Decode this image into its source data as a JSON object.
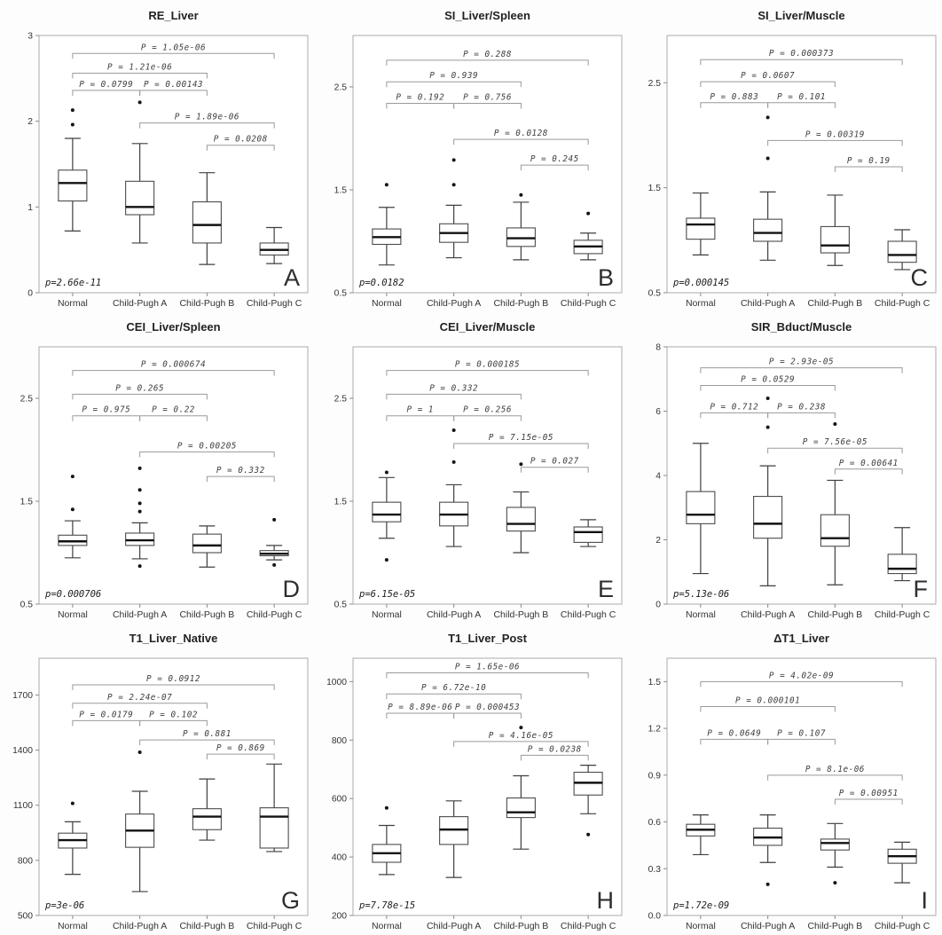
{
  "figure": {
    "categories": [
      "Normal",
      "Child-Pugh A",
      "Child-Pugh B",
      "Child-Pugh C"
    ],
    "palette": {
      "background": "#fdfdfd",
      "plot_border": "#ababab",
      "box_fill": "#ffffff",
      "box_stroke": "#4c4c4c",
      "median": "#111111",
      "whisker": "#3f3f3f",
      "bracket": "#9a9a9a",
      "bracket_text": "#3d3d3d",
      "axis_text": "#333333",
      "title_text": "#222222",
      "letter_text": "#2e2e2e",
      "outlier": "#151515"
    }
  },
  "chart_data": [
    {
      "type": "boxplot",
      "panel_label": "A",
      "title": "RE_Liver",
      "overall_p": "p=2.66e-11",
      "ylim": [
        0,
        3
      ],
      "ytick_values": [
        0,
        1,
        2,
        3
      ],
      "ytick_labels": [
        "0",
        "1",
        "2",
        "3"
      ],
      "boxes": [
        {
          "group": "Normal",
          "whisker_low": 0.72,
          "q1": 1.07,
          "median": 1.28,
          "q3": 1.43,
          "whisker_high": 1.8,
          "outliers": [
            1.96,
            2.13
          ]
        },
        {
          "group": "Child-Pugh A",
          "whisker_low": 0.58,
          "q1": 0.91,
          "median": 1.0,
          "q3": 1.3,
          "whisker_high": 1.74,
          "outliers": [
            2.22
          ]
        },
        {
          "group": "Child-Pugh B",
          "whisker_low": 0.33,
          "q1": 0.58,
          "median": 0.79,
          "q3": 1.06,
          "whisker_high": 1.4,
          "outliers": []
        },
        {
          "group": "Child-Pugh C",
          "whisker_low": 0.34,
          "q1": 0.44,
          "median": 0.5,
          "q3": 0.58,
          "whisker_high": 0.76,
          "outliers": []
        }
      ],
      "comparisons": [
        {
          "g1": 0,
          "g2": 3,
          "y": 2.79,
          "label": "P = 1.05e-06"
        },
        {
          "g1": 0,
          "g2": 2,
          "y": 2.56,
          "label": "P = 1.21e-06"
        },
        {
          "g1": 0,
          "g2": 1,
          "y": 2.36,
          "label": "P = 0.0799"
        },
        {
          "g1": 1,
          "g2": 2,
          "y": 2.36,
          "label": "P = 0.00143"
        },
        {
          "g1": 1,
          "g2": 3,
          "y": 1.98,
          "label": "P = 1.89e-06"
        },
        {
          "g1": 2,
          "g2": 3,
          "y": 1.72,
          "label": "P = 0.0208"
        }
      ]
    },
    {
      "type": "boxplot",
      "panel_label": "B",
      "title": "SI_Liver/Spleen",
      "overall_p": "p=0.0182",
      "ylim": [
        0.5,
        3.0
      ],
      "ytick_values": [
        0.5,
        1.5,
        2.5
      ],
      "ytick_labels": [
        "0.5",
        "1.5",
        "2.5"
      ],
      "boxes": [
        {
          "group": "Normal",
          "whisker_low": 0.77,
          "q1": 0.97,
          "median": 1.04,
          "q3": 1.12,
          "whisker_high": 1.33,
          "outliers": [
            1.55
          ]
        },
        {
          "group": "Child-Pugh A",
          "whisker_low": 0.84,
          "q1": 0.99,
          "median": 1.08,
          "q3": 1.17,
          "whisker_high": 1.35,
          "outliers": [
            1.55,
            1.79
          ]
        },
        {
          "group": "Child-Pugh B",
          "whisker_low": 0.82,
          "q1": 0.95,
          "median": 1.03,
          "q3": 1.13,
          "whisker_high": 1.38,
          "outliers": [
            1.45
          ]
        },
        {
          "group": "Child-Pugh C",
          "whisker_low": 0.82,
          "q1": 0.88,
          "median": 0.95,
          "q3": 1.01,
          "whisker_high": 1.08,
          "outliers": [
            1.27
          ]
        }
      ],
      "comparisons": [
        {
          "g1": 0,
          "g2": 3,
          "y": 2.76,
          "label": "P = 0.288"
        },
        {
          "g1": 0,
          "g2": 2,
          "y": 2.55,
          "label": "P = 0.939"
        },
        {
          "g1": 0,
          "g2": 1,
          "y": 2.34,
          "label": "P = 0.192"
        },
        {
          "g1": 1,
          "g2": 2,
          "y": 2.34,
          "label": "P = 0.756"
        },
        {
          "g1": 1,
          "g2": 3,
          "y": 1.99,
          "label": "P = 0.0128"
        },
        {
          "g1": 2,
          "g2": 3,
          "y": 1.74,
          "label": "P = 0.245"
        }
      ]
    },
    {
      "type": "boxplot",
      "panel_label": "C",
      "title": "SI_Liver/Muscle",
      "overall_p": "p=0.000145",
      "ylim": [
        0.5,
        2.95
      ],
      "ytick_values": [
        0.5,
        1.5,
        2.5
      ],
      "ytick_labels": [
        "0.5",
        "1.5",
        "2.5"
      ],
      "boxes": [
        {
          "group": "Normal",
          "whisker_low": 0.86,
          "q1": 1.01,
          "median": 1.15,
          "q3": 1.21,
          "whisker_high": 1.45,
          "outliers": []
        },
        {
          "group": "Child-Pugh A",
          "whisker_low": 0.81,
          "q1": 0.99,
          "median": 1.07,
          "q3": 1.2,
          "whisker_high": 1.46,
          "outliers": [
            1.78,
            2.17
          ]
        },
        {
          "group": "Child-Pugh B",
          "whisker_low": 0.76,
          "q1": 0.88,
          "median": 0.95,
          "q3": 1.13,
          "whisker_high": 1.43,
          "outliers": []
        },
        {
          "group": "Child-Pugh C",
          "whisker_low": 0.72,
          "q1": 0.79,
          "median": 0.86,
          "q3": 0.99,
          "whisker_high": 1.1,
          "outliers": []
        }
      ],
      "comparisons": [
        {
          "g1": 0,
          "g2": 3,
          "y": 2.72,
          "label": "P = 0.000373"
        },
        {
          "g1": 0,
          "g2": 2,
          "y": 2.51,
          "label": "P = 0.0607"
        },
        {
          "g1": 0,
          "g2": 1,
          "y": 2.31,
          "label": "P = 0.883"
        },
        {
          "g1": 1,
          "g2": 2,
          "y": 2.31,
          "label": "P = 0.101"
        },
        {
          "g1": 1,
          "g2": 3,
          "y": 1.95,
          "label": "P = 0.00319"
        },
        {
          "g1": 2,
          "g2": 3,
          "y": 1.7,
          "label": "P = 0.19"
        }
      ]
    },
    {
      "type": "boxplot",
      "panel_label": "D",
      "title": "CEI_Liver/Spleen",
      "overall_p": "p=0.000706",
      "ylim": [
        0.5,
        3.0
      ],
      "ytick_values": [
        0.5,
        1.5,
        2.5
      ],
      "ytick_labels": [
        "0.5",
        "1.5",
        "2.5"
      ],
      "boxes": [
        {
          "group": "Normal",
          "whisker_low": 0.95,
          "q1": 1.07,
          "median": 1.11,
          "q3": 1.17,
          "whisker_high": 1.31,
          "outliers": [
            1.42,
            1.74
          ]
        },
        {
          "group": "Child-Pugh A",
          "whisker_low": 0.94,
          "q1": 1.07,
          "median": 1.12,
          "q3": 1.19,
          "whisker_high": 1.29,
          "outliers": [
            0.87,
            1.4,
            1.48,
            1.61,
            1.82
          ]
        },
        {
          "group": "Child-Pugh B",
          "whisker_low": 0.86,
          "q1": 1.0,
          "median": 1.07,
          "q3": 1.18,
          "whisker_high": 1.26,
          "outliers": []
        },
        {
          "group": "Child-Pugh C",
          "whisker_low": 0.93,
          "q1": 0.97,
          "median": 0.99,
          "q3": 1.02,
          "whisker_high": 1.07,
          "outliers": [
            0.88,
            1.32
          ]
        }
      ],
      "comparisons": [
        {
          "g1": 0,
          "g2": 3,
          "y": 2.77,
          "label": "P = 0.000674"
        },
        {
          "g1": 0,
          "g2": 2,
          "y": 2.54,
          "label": "P = 0.265"
        },
        {
          "g1": 0,
          "g2": 1,
          "y": 2.33,
          "label": "P = 0.975"
        },
        {
          "g1": 1,
          "g2": 2,
          "y": 2.33,
          "label": "P = 0.22"
        },
        {
          "g1": 1,
          "g2": 3,
          "y": 1.98,
          "label": "P = 0.00205"
        },
        {
          "g1": 2,
          "g2": 3,
          "y": 1.74,
          "label": "P = 0.332"
        }
      ]
    },
    {
      "type": "boxplot",
      "panel_label": "E",
      "title": "CEI_Liver/Muscle",
      "overall_p": "p=6.15e-05",
      "ylim": [
        0.5,
        3.0
      ],
      "ytick_values": [
        0.5,
        1.5,
        2.5
      ],
      "ytick_labels": [
        "0.5",
        "1.5",
        "2.5"
      ],
      "boxes": [
        {
          "group": "Normal",
          "whisker_low": 1.14,
          "q1": 1.3,
          "median": 1.37,
          "q3": 1.49,
          "whisker_high": 1.73,
          "outliers": [
            0.93,
            1.78
          ]
        },
        {
          "group": "Child-Pugh A",
          "whisker_low": 1.06,
          "q1": 1.26,
          "median": 1.37,
          "q3": 1.49,
          "whisker_high": 1.66,
          "outliers": [
            1.88,
            2.19
          ]
        },
        {
          "group": "Child-Pugh B",
          "whisker_low": 1.0,
          "q1": 1.21,
          "median": 1.28,
          "q3": 1.44,
          "whisker_high": 1.59,
          "outliers": [
            1.86
          ]
        },
        {
          "group": "Child-Pugh C",
          "whisker_low": 1.06,
          "q1": 1.1,
          "median": 1.2,
          "q3": 1.25,
          "whisker_high": 1.32,
          "outliers": []
        }
      ],
      "comparisons": [
        {
          "g1": 0,
          "g2": 3,
          "y": 2.77,
          "label": "P = 0.000185"
        },
        {
          "g1": 0,
          "g2": 2,
          "y": 2.54,
          "label": "P = 0.332"
        },
        {
          "g1": 0,
          "g2": 1,
          "y": 2.33,
          "label": "P = 1"
        },
        {
          "g1": 1,
          "g2": 2,
          "y": 2.33,
          "label": "P = 0.256"
        },
        {
          "g1": 1,
          "g2": 3,
          "y": 2.06,
          "label": "P = 7.15e-05"
        },
        {
          "g1": 2,
          "g2": 3,
          "y": 1.83,
          "label": "P = 0.027"
        }
      ]
    },
    {
      "type": "boxplot",
      "panel_label": "F",
      "title": "SIR_Bduct/Muscle",
      "overall_p": "p=5.13e-06",
      "ylim": [
        0,
        8
      ],
      "ytick_values": [
        0,
        2,
        4,
        6,
        8
      ],
      "ytick_labels": [
        "0",
        "2",
        "4",
        "6",
        "8"
      ],
      "boxes": [
        {
          "group": "Normal",
          "whisker_low": 0.95,
          "q1": 2.5,
          "median": 2.78,
          "q3": 3.5,
          "whisker_high": 5.0,
          "outliers": []
        },
        {
          "group": "Child-Pugh A",
          "whisker_low": 0.57,
          "q1": 2.05,
          "median": 2.5,
          "q3": 3.35,
          "whisker_high": 4.3,
          "outliers": [
            5.5,
            6.4
          ]
        },
        {
          "group": "Child-Pugh B",
          "whisker_low": 0.6,
          "q1": 1.8,
          "median": 2.05,
          "q3": 2.78,
          "whisker_high": 3.85,
          "outliers": [
            5.6
          ]
        },
        {
          "group": "Child-Pugh C",
          "whisker_low": 0.73,
          "q1": 0.95,
          "median": 1.1,
          "q3": 1.55,
          "whisker_high": 2.38,
          "outliers": []
        }
      ],
      "comparisons": [
        {
          "g1": 0,
          "g2": 3,
          "y": 7.35,
          "label": "P = 2.93e-05"
        },
        {
          "g1": 0,
          "g2": 2,
          "y": 6.8,
          "label": "P = 0.0529"
        },
        {
          "g1": 0,
          "g2": 1,
          "y": 5.95,
          "label": "P = 0.712"
        },
        {
          "g1": 1,
          "g2": 2,
          "y": 5.95,
          "label": "P = 0.238"
        },
        {
          "g1": 1,
          "g2": 3,
          "y": 4.85,
          "label": "P = 7.56e-05"
        },
        {
          "g1": 2,
          "g2": 3,
          "y": 4.2,
          "label": "P = 0.00641"
        }
      ]
    },
    {
      "type": "boxplot",
      "panel_label": "G",
      "title": "T1_Liver_Native",
      "overall_p": "p=3e-06",
      "ylim": [
        500,
        1900
      ],
      "ytick_values": [
        500,
        800,
        1100,
        1400,
        1700
      ],
      "ytick_labels": [
        "500",
        "800",
        "1100",
        "1400",
        "1700"
      ],
      "boxes": [
        {
          "group": "Normal",
          "whisker_low": 724,
          "q1": 867,
          "median": 910,
          "q3": 948,
          "whisker_high": 1010,
          "outliers": [
            1110
          ]
        },
        {
          "group": "Child-Pugh A",
          "whisker_low": 630,
          "q1": 871,
          "median": 962,
          "q3": 1052,
          "whisker_high": 1176,
          "outliers": [
            1388
          ]
        },
        {
          "group": "Child-Pugh B",
          "whisker_low": 910,
          "q1": 967,
          "median": 1038,
          "q3": 1081,
          "whisker_high": 1243,
          "outliers": []
        },
        {
          "group": "Child-Pugh C",
          "whisker_low": 848,
          "q1": 867,
          "median": 1038,
          "q3": 1086,
          "whisker_high": 1324,
          "outliers": []
        }
      ],
      "comparisons": [
        {
          "g1": 0,
          "g2": 3,
          "y": 1755,
          "label": "P = 0.0912"
        },
        {
          "g1": 0,
          "g2": 2,
          "y": 1655,
          "label": "P = 2.24e-07"
        },
        {
          "g1": 0,
          "g2": 1,
          "y": 1560,
          "label": "P = 0.0179"
        },
        {
          "g1": 1,
          "g2": 2,
          "y": 1560,
          "label": "P = 0.102"
        },
        {
          "g1": 1,
          "g2": 3,
          "y": 1455,
          "label": "P = 0.881"
        },
        {
          "g1": 2,
          "g2": 3,
          "y": 1378,
          "label": "P = 0.869"
        }
      ]
    },
    {
      "type": "boxplot",
      "panel_label": "H",
      "title": "T1_Liver_Post",
      "overall_p": "p=7.78e-15",
      "ylim": [
        200,
        1080
      ],
      "ytick_values": [
        200,
        400,
        600,
        800,
        1000
      ],
      "ytick_labels": [
        "200",
        "400",
        "600",
        "800",
        "1000"
      ],
      "boxes": [
        {
          "group": "Normal",
          "whisker_low": 340,
          "q1": 382,
          "median": 413,
          "q3": 443,
          "whisker_high": 508,
          "outliers": [
            568
          ]
        },
        {
          "group": "Child-Pugh A",
          "whisker_low": 330,
          "q1": 443,
          "median": 494,
          "q3": 538,
          "whisker_high": 592,
          "outliers": []
        },
        {
          "group": "Child-Pugh B",
          "whisker_low": 427,
          "q1": 535,
          "median": 553,
          "q3": 602,
          "whisker_high": 678,
          "outliers": [
            843
          ]
        },
        {
          "group": "Child-Pugh C",
          "whisker_low": 548,
          "q1": 612,
          "median": 654,
          "q3": 690,
          "whisker_high": 714,
          "outliers": [
            477
          ]
        }
      ],
      "comparisons": [
        {
          "g1": 0,
          "g2": 3,
          "y": 1030,
          "label": "P = 1.65e-06"
        },
        {
          "g1": 0,
          "g2": 2,
          "y": 958,
          "label": "P = 6.72e-10"
        },
        {
          "g1": 0,
          "g2": 1,
          "y": 892,
          "label": "P = 8.89e-06"
        },
        {
          "g1": 1,
          "g2": 2,
          "y": 892,
          "label": "P = 0.000453"
        },
        {
          "g1": 1,
          "g2": 3,
          "y": 795,
          "label": "P = 4.16e-05"
        },
        {
          "g1": 2,
          "g2": 3,
          "y": 748,
          "label": "P = 0.0238"
        }
      ]
    },
    {
      "type": "boxplot",
      "panel_label": "I",
      "title": "ΔT1_Liver",
      "overall_p": "p=1.72e-09",
      "ylim": [
        0,
        1.65
      ],
      "ytick_values": [
        0,
        0.3,
        0.6,
        0.9,
        1.2,
        1.5
      ],
      "ytick_labels": [
        "0.0",
        "0.3",
        "0.6",
        "0.9",
        "1.2",
        "1.5"
      ],
      "boxes": [
        {
          "group": "Normal",
          "whisker_low": 0.39,
          "q1": 0.51,
          "median": 0.55,
          "q3": 0.585,
          "whisker_high": 0.645,
          "outliers": []
        },
        {
          "group": "Child-Pugh A",
          "whisker_low": 0.34,
          "q1": 0.45,
          "median": 0.5,
          "q3": 0.56,
          "whisker_high": 0.645,
          "outliers": [
            0.2
          ]
        },
        {
          "group": "Child-Pugh B",
          "whisker_low": 0.31,
          "q1": 0.42,
          "median": 0.465,
          "q3": 0.49,
          "whisker_high": 0.59,
          "outliers": [
            0.21
          ]
        },
        {
          "group": "Child-Pugh C",
          "whisker_low": 0.21,
          "q1": 0.335,
          "median": 0.38,
          "q3": 0.425,
          "whisker_high": 0.47,
          "outliers": []
        }
      ],
      "comparisons": [
        {
          "g1": 0,
          "g2": 3,
          "y": 1.5,
          "label": "P = 4.02e-09"
        },
        {
          "g1": 0,
          "g2": 2,
          "y": 1.34,
          "label": "P = 0.000101"
        },
        {
          "g1": 0,
          "g2": 1,
          "y": 1.13,
          "label": "P = 0.0649"
        },
        {
          "g1": 1,
          "g2": 2,
          "y": 1.13,
          "label": "P = 0.107"
        },
        {
          "g1": 1,
          "g2": 3,
          "y": 0.9,
          "label": "P = 8.1e-06"
        },
        {
          "g1": 2,
          "g2": 3,
          "y": 0.745,
          "label": "P = 0.00951"
        }
      ]
    }
  ]
}
